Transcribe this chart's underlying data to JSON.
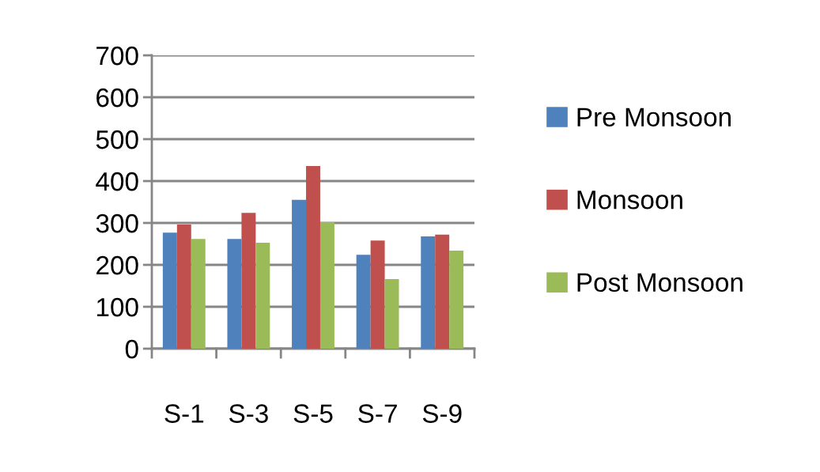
{
  "chart_data": {
    "type": "bar",
    "categories": [
      "S-1",
      "S-3",
      "S-5",
      "S-7",
      "S-9"
    ],
    "series": [
      {
        "name": "Pre Monsoon",
        "color": "#4f81bd",
        "values": [
          277,
          262,
          355,
          224,
          268
        ]
      },
      {
        "name": "Monsoon",
        "color": "#c0504d",
        "values": [
          296,
          324,
          436,
          258,
          272
        ]
      },
      {
        "name": "Post Monsoon",
        "color": "#9bbb59",
        "values": [
          262,
          253,
          302,
          166,
          234
        ]
      }
    ],
    "ylim": [
      0,
      700
    ],
    "yticks": [
      0,
      100,
      200,
      300,
      400,
      500,
      600,
      700
    ],
    "grid": "y",
    "legend": "right"
  }
}
